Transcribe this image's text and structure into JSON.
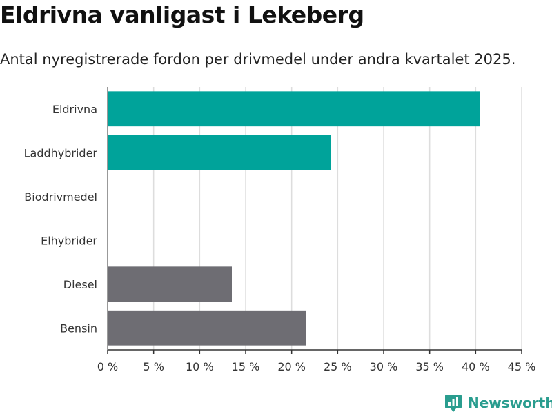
{
  "header": {
    "title": "Eldrivna vanligast i Lekeberg",
    "subtitle": "Antal nyregistrerade fordon per drivmedel under andra kvartalet 2025."
  },
  "brand": {
    "name": "Newsworthy"
  },
  "colors": {
    "electric": "#00a39a",
    "fossil": "#6e6d73",
    "grid": "#dddddd",
    "axis": "#333333"
  },
  "chart_data": {
    "type": "bar",
    "orientation": "horizontal",
    "categories": [
      "Eldrivna",
      "Laddhybrider",
      "Biodrivmedel",
      "Elhybrider",
      "Diesel",
      "Bensin"
    ],
    "values": [
      40.5,
      24.3,
      0,
      0,
      13.5,
      21.6
    ],
    "bar_colors": [
      "#00a39a",
      "#00a39a",
      "#00a39a",
      "#00a39a",
      "#6e6d73",
      "#6e6d73"
    ],
    "xlim": [
      0,
      45
    ],
    "xticks": [
      0,
      5,
      10,
      15,
      20,
      25,
      30,
      35,
      40,
      45
    ],
    "tick_labels": [
      "0 %",
      "5 %",
      "10 %",
      "15 %",
      "20 %",
      "25 %",
      "30 %",
      "35 %",
      "40 %",
      "45 %"
    ],
    "xlabel": "",
    "ylabel": "",
    "grid": true
  }
}
